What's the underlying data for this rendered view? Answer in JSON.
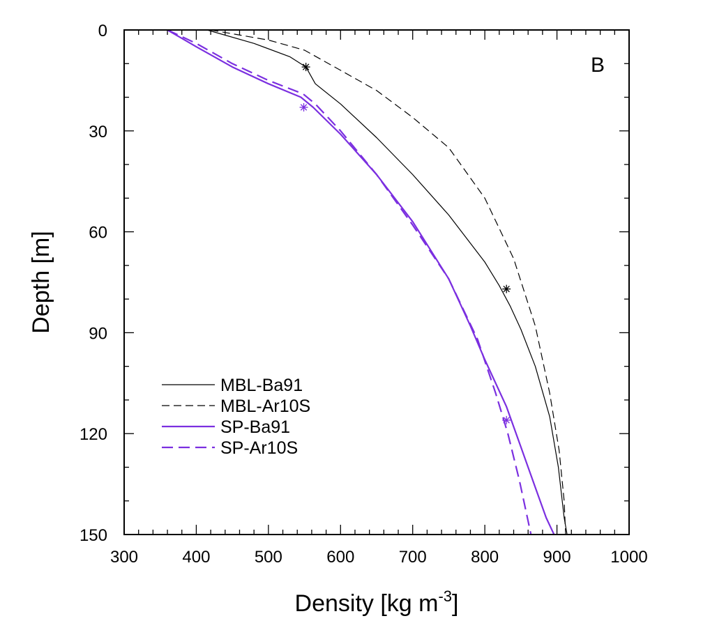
{
  "chart_data": {
    "type": "line",
    "panel_label": "B",
    "xlabel": "Density [kg m",
    "xlabel_superscript": "-3",
    "xlabel_suffix": "]",
    "ylabel": "Depth [m]",
    "xlim": [
      300,
      1000
    ],
    "ylim": [
      0,
      150
    ],
    "y_inverted": true,
    "x_ticks": [
      300,
      400,
      500,
      600,
      700,
      800,
      900,
      1000
    ],
    "y_ticks": [
      0,
      30,
      60,
      90,
      120,
      150
    ],
    "x_ticklabels": [
      "300",
      "400",
      "500",
      "600",
      "700",
      "800",
      "900",
      "1000"
    ],
    "y_ticklabels": [
      "0",
      "30",
      "60",
      "90",
      "120",
      "150"
    ],
    "grid": false,
    "legend_position": "lower-left",
    "series": [
      {
        "name": "MBL-Ba91",
        "color": "#000000",
        "dash": "solid",
        "points": [
          [
            415,
            0
          ],
          [
            480,
            4
          ],
          [
            530,
            8
          ],
          [
            552,
            11
          ],
          [
            565,
            16
          ],
          [
            600,
            22
          ],
          [
            650,
            32
          ],
          [
            700,
            43
          ],
          [
            750,
            55
          ],
          [
            800,
            69
          ],
          [
            820,
            76
          ],
          [
            835,
            82
          ],
          [
            850,
            89
          ],
          [
            870,
            100
          ],
          [
            890,
            115
          ],
          [
            902,
            130
          ],
          [
            910,
            145
          ],
          [
            914,
            150
          ]
        ]
      },
      {
        "name": "MBL-Ar10S",
        "color": "#000000",
        "dash": "dashed",
        "points": [
          [
            420,
            0
          ],
          [
            500,
            3
          ],
          [
            550,
            6
          ],
          [
            600,
            12
          ],
          [
            650,
            18
          ],
          [
            700,
            26
          ],
          [
            750,
            35
          ],
          [
            800,
            50
          ],
          [
            840,
            68
          ],
          [
            870,
            88
          ],
          [
            890,
            108
          ],
          [
            903,
            125
          ],
          [
            910,
            140
          ],
          [
            912,
            150
          ]
        ]
      },
      {
        "name": "SP-Ba91",
        "color": "#7b2fe0",
        "dash": "solid",
        "points": [
          [
            360,
            0
          ],
          [
            400,
            5
          ],
          [
            450,
            11
          ],
          [
            500,
            16
          ],
          [
            545,
            20
          ],
          [
            562,
            23
          ],
          [
            600,
            31
          ],
          [
            650,
            43
          ],
          [
            700,
            57
          ],
          [
            750,
            74
          ],
          [
            780,
            88
          ],
          [
            800,
            98
          ],
          [
            830,
            112
          ],
          [
            850,
            124
          ],
          [
            870,
            136
          ],
          [
            885,
            145
          ],
          [
            896,
            150
          ]
        ]
      },
      {
        "name": "SP-Ar10S",
        "color": "#7b2fe0",
        "dash": "dashed",
        "points": [
          [
            360,
            0
          ],
          [
            400,
            4
          ],
          [
            450,
            10
          ],
          [
            500,
            15
          ],
          [
            548,
            19
          ],
          [
            565,
            22
          ],
          [
            600,
            30
          ],
          [
            650,
            43
          ],
          [
            700,
            58
          ],
          [
            750,
            74
          ],
          [
            790,
            92
          ],
          [
            815,
            108
          ],
          [
            832,
            120
          ],
          [
            848,
            134
          ],
          [
            860,
            146
          ],
          [
            864,
            150
          ]
        ]
      }
    ],
    "markers": [
      {
        "series": "MBL-Ba91",
        "x": 552,
        "y": 11,
        "color": "#000000"
      },
      {
        "series": "MBL-Ba91",
        "x": 830,
        "y": 77,
        "color": "#000000"
      },
      {
        "series": "SP-Ba91",
        "x": 549,
        "y": 23,
        "color": "#7b2fe0"
      },
      {
        "series": "SP-Ba91",
        "x": 830,
        "y": 116,
        "color": "#7b2fe0"
      }
    ]
  }
}
